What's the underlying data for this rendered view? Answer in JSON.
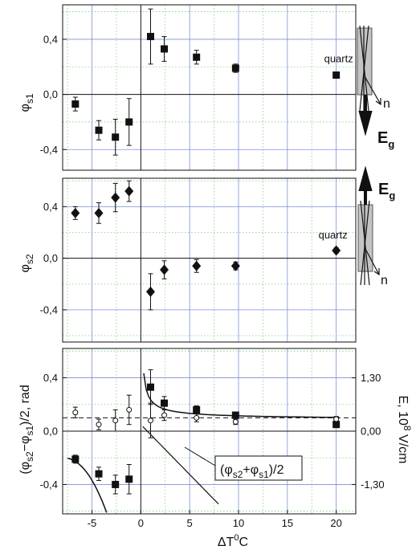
{
  "chart_data": [
    {
      "type": "scatter",
      "ylabel_main": "φ",
      "ylabel_sub": "s1",
      "ylim": [
        -0.55,
        0.65
      ],
      "yticks": [
        0.4,
        0.0,
        -0.4
      ],
      "ytick_labels": [
        "0,4",
        "0,0",
        "-0,4"
      ],
      "marker": "square",
      "points": [
        {
          "x": -6.7,
          "y": -0.07,
          "err": 0.05
        },
        {
          "x": -4.3,
          "y": -0.26,
          "err": 0.07
        },
        {
          "x": -2.6,
          "y": -0.31,
          "err": 0.13
        },
        {
          "x": -1.2,
          "y": -0.2,
          "err": 0.17
        },
        {
          "x": 1.0,
          "y": 0.42,
          "err": 0.2
        },
        {
          "x": 2.4,
          "y": 0.33,
          "err": 0.09
        },
        {
          "x": 5.7,
          "y": 0.27,
          "err": 0.05
        },
        {
          "x": 9.7,
          "y": 0.19,
          "err": 0.03
        },
        {
          "x": 20.0,
          "y": 0.14,
          "err": 0.02
        }
      ],
      "annotation": "quartz",
      "field_label": "E",
      "field_sub": "g",
      "n_label": "n",
      "field_direction": "down"
    },
    {
      "type": "scatter",
      "ylabel_main": "φ",
      "ylabel_sub": "s2",
      "ylim": [
        -0.65,
        0.62
      ],
      "yticks": [
        0.4,
        0.0,
        -0.4
      ],
      "ytick_labels": [
        "0,4",
        "0,0",
        "-0,4"
      ],
      "marker": "diamond",
      "points": [
        {
          "x": -6.7,
          "y": 0.35,
          "err": 0.05
        },
        {
          "x": -4.3,
          "y": 0.35,
          "err": 0.08
        },
        {
          "x": -2.6,
          "y": 0.47,
          "err": 0.11
        },
        {
          "x": -1.2,
          "y": 0.52,
          "err": 0.08
        },
        {
          "x": 1.0,
          "y": -0.26,
          "err": 0.14
        },
        {
          "x": 2.4,
          "y": -0.09,
          "err": 0.07
        },
        {
          "x": 5.7,
          "y": -0.06,
          "err": 0.05
        },
        {
          "x": 9.7,
          "y": -0.06,
          "err": 0.03
        },
        {
          "x": 20.0,
          "y": 0.06,
          "err": 0.02
        }
      ],
      "annotation": "quartz",
      "field_label": "E",
      "field_sub": "g",
      "n_label": "n",
      "field_direction": "up"
    },
    {
      "type": "scatter",
      "ylabel_left": "(φs2−φs1)/2, rad",
      "ylabel_left_parts": [
        "(φ",
        "s2",
        "−φ",
        "s1",
        ")/2, rad"
      ],
      "ylabel_right": "E, 10⁸ V/cm",
      "ylabel_right_parts": [
        "E, 10",
        "8",
        " V/cm"
      ],
      "ylim": [
        -0.62,
        0.62
      ],
      "yticks": [
        0.4,
        0.0,
        -0.4
      ],
      "ytick_labels": [
        "0,4",
        "0,0",
        "-0,4"
      ],
      "right_tick_labels": [
        "1,30",
        "0,00",
        "-1,30"
      ],
      "xlabel": "ΔT⁰C",
      "xlabel_parts": [
        "ΔT",
        "0",
        "C"
      ],
      "xlim": [
        -8,
        22
      ],
      "xticks": [
        -5,
        0,
        5,
        10,
        15,
        20
      ],
      "xtick_labels": [
        "-5",
        "0",
        "5",
        "10",
        "15",
        "20"
      ],
      "series": [
        {
          "marker": "square",
          "points": [
            {
              "x": -6.7,
              "y": -0.21,
              "err": 0.03
            },
            {
              "x": -4.3,
              "y": -0.32,
              "err": 0.05
            },
            {
              "x": -2.6,
              "y": -0.4,
              "err": 0.07
            },
            {
              "x": -1.2,
              "y": -0.36,
              "err": 0.11
            },
            {
              "x": 1.0,
              "y": 0.33,
              "err": 0.13
            },
            {
              "x": 2.4,
              "y": 0.21,
              "err": 0.05
            },
            {
              "x": 5.7,
              "y": 0.16,
              "err": 0.03
            },
            {
              "x": 9.7,
              "y": 0.12,
              "err": 0.02
            },
            {
              "x": 20.0,
              "y": 0.05,
              "err": 0.02
            }
          ]
        },
        {
          "marker": "open-circle",
          "points": [
            {
              "x": -6.7,
              "y": 0.14,
              "err": 0.04
            },
            {
              "x": -4.3,
              "y": 0.05,
              "err": 0.04
            },
            {
              "x": -2.6,
              "y": 0.08,
              "err": 0.08
            },
            {
              "x": -1.2,
              "y": 0.16,
              "err": 0.11
            },
            {
              "x": 1.0,
              "y": 0.08,
              "err": 0.13
            },
            {
              "x": 2.4,
              "y": 0.12,
              "err": 0.04
            },
            {
              "x": 5.7,
              "y": 0.1,
              "err": 0.03
            },
            {
              "x": 9.7,
              "y": 0.07,
              "err": 0.02
            },
            {
              "x": 20.0,
              "y": 0.09,
              "err": 0.02
            }
          ]
        }
      ],
      "dashed_level": 0.1,
      "curve_label_parts": [
        "(φ",
        "s2",
        "+φ",
        "s1",
        ")/2"
      ]
    }
  ]
}
